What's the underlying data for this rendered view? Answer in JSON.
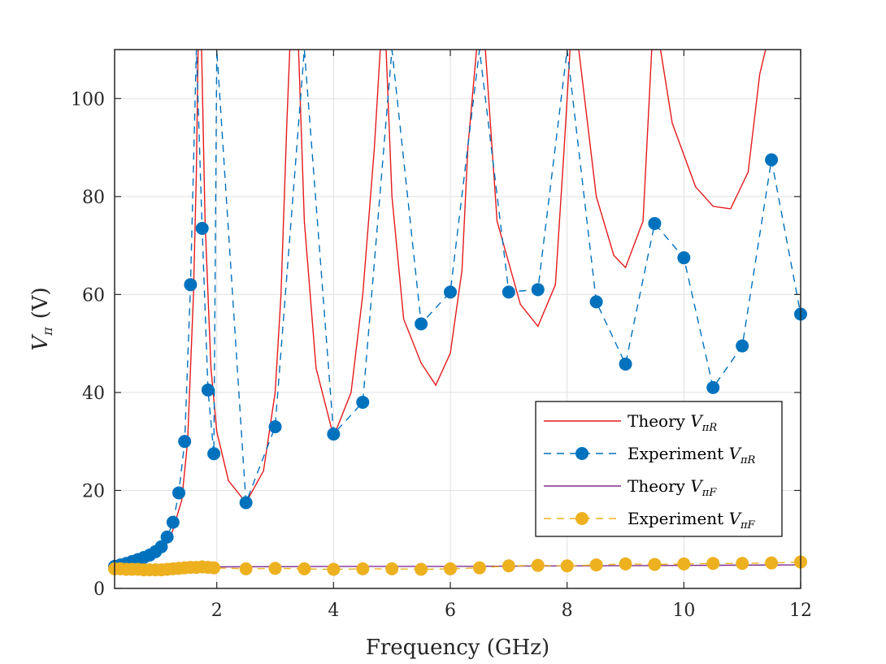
{
  "chart_data": {
    "type": "line",
    "title": "",
    "xlabel": "Frequency (GHz)",
    "ylabel_main": "V",
    "ylabel_sub": "π",
    "ylabel_unit": "(V)",
    "xlim": [
      0.25,
      12
    ],
    "ylim": [
      0,
      110
    ],
    "xticks": [
      2,
      4,
      6,
      8,
      10,
      12
    ],
    "yticks": [
      0,
      20,
      40,
      60,
      80,
      100
    ],
    "grid": true,
    "legend_position": "bottom-right",
    "colors": {
      "theory_r": "#e41a1c",
      "experiment_r": "#0072bd",
      "theory_f": "#7e2f8e",
      "experiment_f": "#edb120",
      "grid": "#e0e0e0",
      "axis": "#262626"
    },
    "series": [
      {
        "name": "Theory V_{πR}",
        "legend_label": "Theory",
        "legend_sub": "πR",
        "style": "solid-line",
        "note": "resonant curve with periodic divergences near 1.7, 3.3, 4.85, 6.4, 8.0, 9.5, 11.2 GHz",
        "x": [
          0.25,
          0.5,
          0.75,
          1.0,
          1.2,
          1.4,
          1.5,
          1.6,
          1.65,
          1.68,
          1.74,
          1.8,
          1.9,
          2.0,
          2.2,
          2.5,
          2.8,
          3.0,
          3.1,
          3.2,
          3.25,
          3.4,
          3.5,
          3.7,
          4.0,
          4.3,
          4.5,
          4.7,
          4.8,
          4.9,
          5.0,
          5.2,
          5.5,
          5.75,
          6.0,
          6.2,
          6.3,
          6.45,
          6.6,
          6.8,
          7.2,
          7.5,
          7.8,
          7.95,
          8.05,
          8.2,
          8.5,
          8.8,
          9.0,
          9.3,
          9.45,
          9.6,
          9.8,
          10.2,
          10.5,
          10.8,
          11.1,
          11.3,
          11.4
        ],
        "y": [
          4.3,
          4.6,
          5.2,
          7.0,
          10.0,
          18.0,
          30.0,
          60.0,
          85.0,
          110,
          110,
          75.0,
          45.0,
          32.0,
          22.0,
          17.5,
          24.0,
          40.0,
          60.0,
          95.0,
          110,
          110,
          75.0,
          45.0,
          31.0,
          40.0,
          60.0,
          90.0,
          110,
          110,
          80.0,
          55.0,
          46.0,
          41.5,
          48.0,
          65.0,
          90.0,
          110,
          110,
          75.0,
          58.0,
          53.5,
          62.0,
          90.0,
          110,
          110,
          80.0,
          68.0,
          65.5,
          75.0,
          110,
          110,
          95.0,
          82.0,
          78.0,
          77.5,
          85.0,
          105.0,
          110
        ]
      },
      {
        "name": "Experiment V_{πR}",
        "legend_label": "Experiment",
        "legend_sub": "πR",
        "style": "dashed-line-markers",
        "x": [
          0.25,
          0.35,
          0.45,
          0.55,
          0.65,
          0.75,
          0.85,
          0.95,
          1.05,
          1.15,
          1.25,
          1.35,
          1.45,
          1.55,
          1.65,
          1.75,
          1.85,
          1.95,
          2.0,
          2.5,
          3.0,
          3.5,
          4.0,
          4.5,
          5.0,
          5.5,
          6.0,
          6.5,
          7.0,
          7.5,
          8.0,
          8.5,
          9.0,
          9.5,
          10.0,
          10.5,
          11.0,
          11.5,
          12.0
        ],
        "y": [
          4.5,
          4.8,
          5.1,
          5.5,
          5.9,
          6.3,
          6.8,
          7.5,
          8.5,
          10.5,
          13.5,
          19.5,
          30.0,
          62.0,
          110,
          73.5,
          40.5,
          27.5,
          110,
          17.5,
          33.0,
          110,
          31.5,
          38.0,
          110,
          54.0,
          60.5,
          110,
          60.5,
          61.0,
          110,
          58.5,
          45.8,
          74.5,
          67.5,
          41.0,
          49.5,
          87.5,
          56.0
        ],
        "marker_x": [
          0.25,
          0.35,
          0.45,
          0.55,
          0.65,
          0.75,
          0.85,
          0.95,
          1.05,
          1.15,
          1.25,
          1.35,
          1.45,
          1.55,
          1.75,
          1.85,
          1.95,
          2.5,
          3.0,
          4.0,
          4.5,
          5.5,
          6.0,
          7.0,
          7.5,
          8.5,
          9.0,
          9.5,
          10.0,
          10.5,
          11.0,
          11.5,
          12.0
        ],
        "marker_y": [
          4.5,
          4.8,
          5.1,
          5.5,
          5.9,
          6.3,
          6.8,
          7.5,
          8.5,
          10.5,
          13.5,
          19.5,
          30.0,
          62.0,
          73.5,
          40.5,
          27.5,
          17.5,
          33.0,
          31.5,
          38.0,
          54.0,
          60.5,
          60.5,
          61.0,
          58.5,
          45.8,
          74.5,
          67.5,
          41.0,
          49.5,
          87.5,
          56.0
        ]
      },
      {
        "name": "Theory V_{πF}",
        "legend_label": "Theory",
        "legend_sub": "πF",
        "style": "solid-line",
        "x": [
          0.25,
          2,
          4,
          6,
          8,
          10,
          12
        ],
        "y": [
          4.4,
          4.4,
          4.5,
          4.5,
          4.6,
          4.7,
          4.8
        ]
      },
      {
        "name": "Experiment V_{πF}",
        "legend_label": "Experiment",
        "legend_sub": "πF",
        "style": "dashed-line-markers",
        "x": [
          0.25,
          0.35,
          0.45,
          0.55,
          0.65,
          0.75,
          0.85,
          0.95,
          1.05,
          1.15,
          1.25,
          1.35,
          1.45,
          1.55,
          1.65,
          1.75,
          1.85,
          1.95,
          2.5,
          3.0,
          3.5,
          4.0,
          4.5,
          5.0,
          5.5,
          6.0,
          6.5,
          7.0,
          7.5,
          8.0,
          8.5,
          9.0,
          9.5,
          10.0,
          10.5,
          11.0,
          11.5,
          12.0
        ],
        "y": [
          4.0,
          4.0,
          3.9,
          3.9,
          3.9,
          3.8,
          3.8,
          3.8,
          3.8,
          3.9,
          4.0,
          4.1,
          4.2,
          4.3,
          4.3,
          4.4,
          4.3,
          4.2,
          4.0,
          4.1,
          4.0,
          3.9,
          4.0,
          4.0,
          3.9,
          4.0,
          4.2,
          4.6,
          4.7,
          4.6,
          4.8,
          5.0,
          4.9,
          5.0,
          5.1,
          5.1,
          5.2,
          5.4
        ]
      }
    ]
  }
}
